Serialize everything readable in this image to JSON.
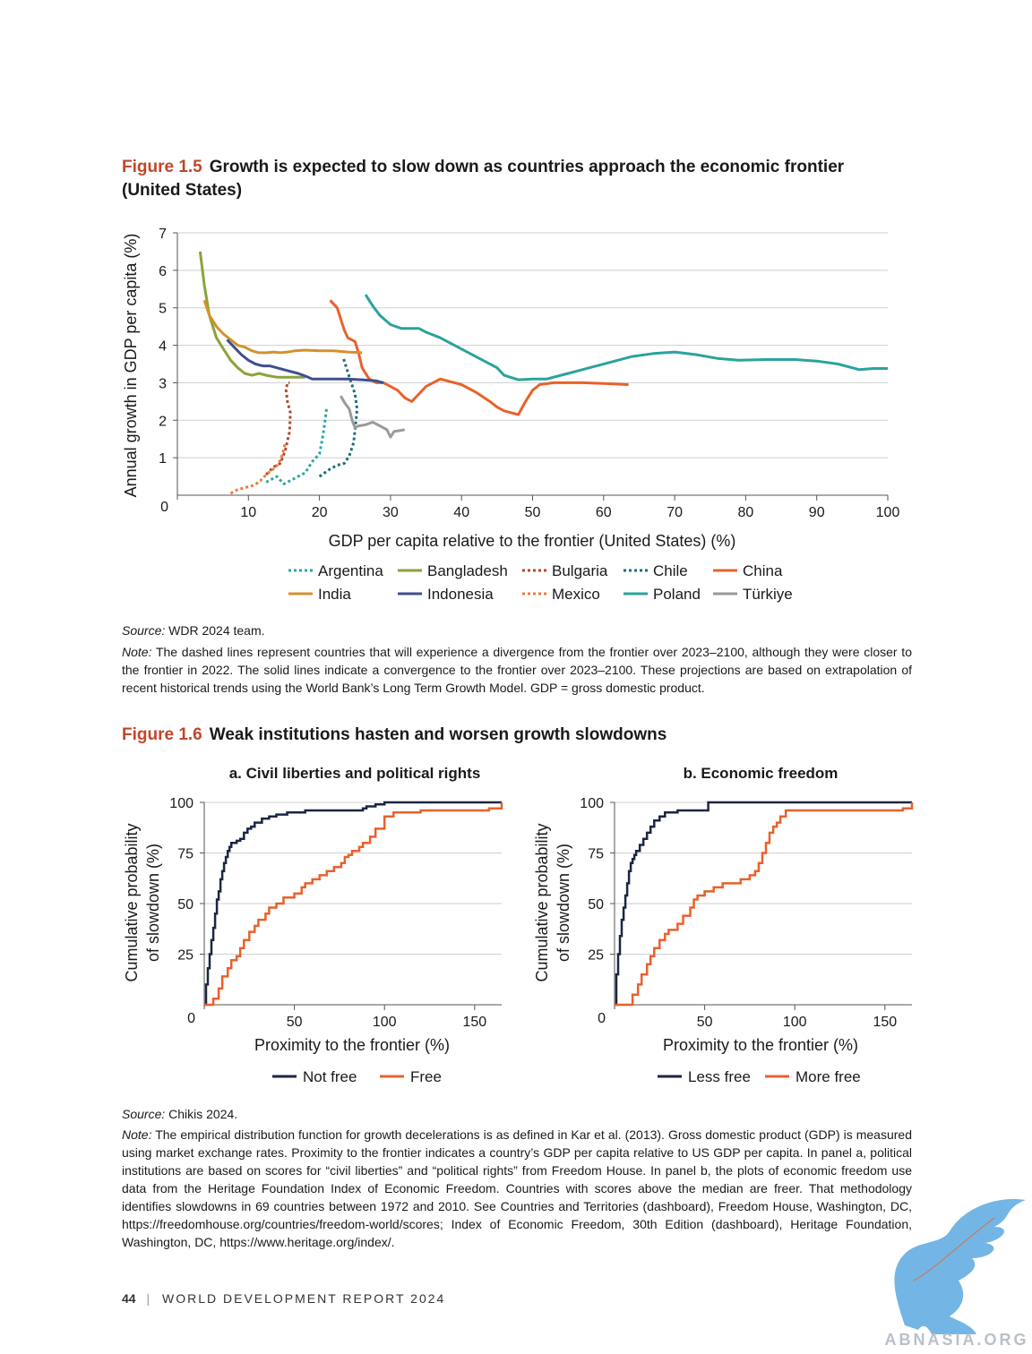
{
  "fig15": {
    "label": "Figure 1.5",
    "title_line1": "Growth is expected to slow down as countries approach the economic frontier",
    "title_line2": "(United States)",
    "source_label": "Source:",
    "source_text": " WDR 2024 team.",
    "note_label": "Note:",
    "note_text": " The dashed lines represent countries that will experience a divergence from the frontier over 2023–2100, although they were closer to the frontier in 2022. The solid lines indicate a convergence to the frontier over 2023–2100. These projections are based on extrapolation of recent historical trends using the World Bank’s Long Term Growth Model. GDP = gross domestic product."
  },
  "fig16": {
    "label": "Figure 1.6",
    "title": "Weak institutions hasten and worsen growth slowdowns",
    "source_label": "Source:",
    "source_text": " Chikis 2024.",
    "note_label": "Note:",
    "note_text": " The empirical distribution function for growth decelerations is as defined in Kar et al. (2013). Gross domestic product (GDP) is measured using market exchange rates. Proximity to the frontier indicates a country’s GDP per capita relative to US GDP per capita. In panel a, political institutions are based on scores for “civil liberties” and “political rights” from Freedom House. In panel b, the plots of economic freedom use data from the Heritage Foundation Index of Economic Freedom. Countries with scores above the median are freer. That methodology identifies slowdowns in 69 countries between 1972 and 2010. See Countries and Territories (dashboard), Freedom House, Washington, DC, https://freedomhouse.org/countries/freedom-world/scores; Index of Economic Freedom, 30th Edition (dashboard), Heritage Foundation, Washington, DC, https://www.heritage.org/index/."
  },
  "footer": {
    "page": "44",
    "separator": "|",
    "title": "WORLD DEVELOPMENT REPORT 2024"
  },
  "watermark": {
    "text": "ABNASIA.ORG"
  },
  "colors": {
    "argentina": "#2ba9a2",
    "bangladesh": "#8aa33a",
    "bulgaria": "#b04a2e",
    "chile": "#1f6e7a",
    "china": "#e8612c",
    "india": "#d4922c",
    "indonesia": "#3f4f8e",
    "mexico": "#f07a3a",
    "poland": "#2aa39c",
    "turkiye": "#9a9a9a",
    "notfree": "#1c2541",
    "free": "#e8612c"
  },
  "chart_data": [
    {
      "type": "line",
      "xlabel": "GDP per capita relative to the frontier (United States) (%)",
      "ylabel": "Annual growth in GDP per capita (%)",
      "xlim": [
        0,
        100
      ],
      "ylim": [
        0,
        7
      ],
      "xticks": [
        10,
        20,
        30,
        40,
        50,
        60,
        70,
        80,
        90,
        100
      ],
      "yticks": [
        1,
        2,
        3,
        4,
        5,
        6,
        7
      ],
      "origin_label": "0",
      "legend_position": "bottom",
      "series": [
        {
          "name": "Argentina",
          "style": "dashed",
          "color": "#2ba9a2",
          "x": [
            12.5,
            14,
            15,
            16.5,
            18,
            19,
            20,
            20.5,
            20.8,
            21
          ],
          "y": [
            0.35,
            0.5,
            0.3,
            0.45,
            0.6,
            0.9,
            1.1,
            1.6,
            2.0,
            2.3
          ]
        },
        {
          "name": "Bangladesh",
          "style": "solid",
          "color": "#8aa33a",
          "x": [
            3.2,
            3.8,
            4.5,
            5.5,
            6.5,
            7.5,
            8.5,
            9.5,
            10.5,
            11.5,
            12.5,
            14,
            16,
            18
          ],
          "y": [
            6.5,
            5.6,
            4.8,
            4.2,
            3.9,
            3.6,
            3.4,
            3.25,
            3.2,
            3.25,
            3.2,
            3.15,
            3.15,
            3.15
          ]
        },
        {
          "name": "Bulgaria",
          "style": "dashed",
          "color": "#b04a2e",
          "x": [
            12.5,
            13.5,
            14.5,
            15.2,
            15.8,
            15.9,
            15.5,
            15.3,
            15.5,
            15.8
          ],
          "y": [
            0.55,
            0.75,
            0.85,
            1.2,
            1.7,
            2.2,
            2.5,
            2.8,
            3.0,
            3.0
          ]
        },
        {
          "name": "Chile",
          "style": "dashed",
          "color": "#1f6e7a",
          "x": [
            20,
            21.5,
            22.5,
            23.5,
            24.2,
            24.8,
            25.1,
            25.3,
            25.0,
            24.3,
            23.8,
            23.3
          ],
          "y": [
            0.5,
            0.7,
            0.8,
            0.85,
            1.05,
            1.4,
            1.9,
            2.3,
            2.7,
            3.1,
            3.4,
            3.7
          ]
        },
        {
          "name": "China",
          "style": "solid",
          "color": "#e8612c",
          "x": [
            21.5,
            22.5,
            23,
            23.5,
            24,
            25,
            25.5,
            26,
            27,
            28,
            29,
            30,
            31,
            32,
            33,
            34,
            35,
            36,
            37,
            38,
            40,
            42,
            44,
            45,
            46,
            47,
            48,
            49,
            50,
            51,
            53,
            57,
            60,
            63.5
          ],
          "y": [
            5.2,
            5.0,
            4.7,
            4.4,
            4.2,
            4.1,
            3.8,
            3.4,
            3.1,
            3.0,
            3.0,
            2.9,
            2.8,
            2.6,
            2.5,
            2.7,
            2.9,
            3.0,
            3.1,
            3.05,
            2.95,
            2.75,
            2.5,
            2.35,
            2.25,
            2.2,
            2.15,
            2.5,
            2.8,
            2.95,
            3.0,
            3.0,
            2.98,
            2.95
          ]
        },
        {
          "name": "India",
          "style": "solid",
          "color": "#d4922c",
          "x": [
            3.8,
            4.5,
            5.5,
            6.5,
            7.5,
            8.5,
            9.5,
            10.5,
            11.5,
            12.5,
            13.5,
            14.5,
            15.5,
            16.5,
            18,
            20,
            22,
            24,
            26
          ],
          "y": [
            5.2,
            4.8,
            4.5,
            4.3,
            4.15,
            4.0,
            3.95,
            3.85,
            3.8,
            3.8,
            3.82,
            3.8,
            3.82,
            3.85,
            3.87,
            3.85,
            3.85,
            3.82,
            3.8
          ]
        },
        {
          "name": "Indonesia",
          "style": "solid",
          "color": "#3f4f8e",
          "x": [
            7,
            8,
            9,
            10,
            11,
            12,
            13,
            14,
            15,
            16,
            17,
            18,
            19,
            20,
            22,
            24,
            26,
            28,
            29
          ],
          "y": [
            4.15,
            3.95,
            3.75,
            3.6,
            3.5,
            3.45,
            3.45,
            3.4,
            3.35,
            3.3,
            3.25,
            3.18,
            3.1,
            3.1,
            3.1,
            3.1,
            3.08,
            3.05,
            3.0
          ]
        },
        {
          "name": "Mexico",
          "style": "dashed",
          "color": "#f07a3a",
          "x": [
            7.5,
            8.5,
            9.5,
            10.5,
            11.5,
            12.5,
            13.5,
            14.3,
            14.8,
            15.2
          ],
          "y": [
            0.05,
            0.15,
            0.2,
            0.25,
            0.35,
            0.55,
            0.7,
            0.85,
            1.1,
            1.4
          ]
        },
        {
          "name": "Poland",
          "style": "solid",
          "color": "#2aa39c",
          "x": [
            26.5,
            27.5,
            28.5,
            30,
            31.5,
            33,
            34,
            35,
            37,
            39,
            41,
            43,
            45,
            46,
            48,
            50,
            52,
            55,
            58,
            61,
            64,
            67,
            70,
            73,
            76,
            79,
            83,
            87,
            90,
            93,
            96,
            98,
            100
          ],
          "y": [
            5.35,
            5.05,
            4.8,
            4.55,
            4.45,
            4.45,
            4.45,
            4.35,
            4.2,
            4.0,
            3.8,
            3.6,
            3.4,
            3.2,
            3.08,
            3.1,
            3.1,
            3.25,
            3.4,
            3.55,
            3.7,
            3.78,
            3.82,
            3.75,
            3.65,
            3.6,
            3.62,
            3.62,
            3.58,
            3.5,
            3.35,
            3.38,
            3.38
          ]
        },
        {
          "name": "Türkiye",
          "style": "solid",
          "color": "#9a9a9a",
          "x": [
            23,
            23.6,
            24.2,
            24.6,
            25,
            25.5,
            26.5,
            27.5,
            28.5,
            29.5,
            30,
            30.5,
            31.2,
            32
          ],
          "y": [
            2.65,
            2.45,
            2.3,
            2.0,
            1.8,
            1.85,
            1.88,
            1.95,
            1.85,
            1.75,
            1.55,
            1.7,
            1.72,
            1.75
          ]
        }
      ]
    },
    {
      "type": "line",
      "title": "a. Civil liberties and political rights",
      "xlabel": "Proximity to the frontier (%)",
      "ylabel_line1": "Cumulative probability",
      "ylabel_line2": "of slowdown (%)",
      "xlim": [
        0,
        165
      ],
      "ylim": [
        0,
        100
      ],
      "xticks": [
        50,
        100,
        150
      ],
      "yticks": [
        25,
        50,
        75,
        100
      ],
      "origin_label": "0",
      "legend_position": "bottom",
      "series": [
        {
          "name": "Not free",
          "color": "#1c2541",
          "x": [
            0,
            1,
            2,
            3,
            4,
            5,
            6,
            7,
            8,
            9,
            10,
            11,
            12,
            13,
            14,
            15,
            16,
            18,
            20,
            22,
            24,
            26,
            28,
            32,
            36,
            40,
            46,
            56,
            70,
            82,
            88,
            90,
            95,
            100,
            125,
            158,
            165
          ],
          "y": [
            0,
            10,
            18,
            25,
            32,
            38,
            45,
            52,
            56,
            62,
            66,
            70,
            73,
            76,
            78,
            80,
            80,
            81,
            82,
            85,
            87,
            88,
            90,
            92,
            93,
            94,
            95,
            96,
            96,
            96,
            97,
            98,
            99,
            100,
            100,
            100,
            100
          ]
        },
        {
          "name": "Free",
          "color": "#e8612c",
          "x": [
            0,
            5,
            8,
            10,
            13,
            15,
            18,
            20,
            22,
            25,
            28,
            30,
            34,
            36,
            40,
            44,
            46,
            50,
            54,
            56,
            60,
            64,
            68,
            72,
            76,
            78,
            80,
            82,
            86,
            88,
            92,
            95,
            100,
            105,
            120,
            140,
            158,
            165
          ],
          "y": [
            0,
            3,
            8,
            14,
            18,
            22,
            24,
            28,
            32,
            36,
            39,
            42,
            45,
            48,
            50,
            53,
            53,
            55,
            58,
            60,
            62,
            64,
            66,
            68,
            70,
            73,
            74,
            76,
            78,
            80,
            83,
            87,
            93,
            95,
            96,
            96,
            97,
            100
          ]
        }
      ]
    },
    {
      "type": "line",
      "title": "b. Economic freedom",
      "xlabel": "Proximity to the frontier (%)",
      "ylabel_line1": "Cumulative probability",
      "ylabel_line2": "of slowdown (%)",
      "xlim": [
        0,
        165
      ],
      "ylim": [
        0,
        100
      ],
      "xticks": [
        50,
        100,
        150
      ],
      "yticks": [
        25,
        50,
        75,
        100
      ],
      "origin_label": "0",
      "legend_position": "bottom",
      "series": [
        {
          "name": "Less free",
          "color": "#1c2541",
          "x": [
            0,
            1,
            2,
            3,
            4,
            5,
            6,
            7,
            8,
            9,
            10,
            11,
            12,
            14,
            16,
            18,
            20,
            22,
            25,
            28,
            35,
            42,
            52,
            80,
            120,
            160,
            165
          ],
          "y": [
            0,
            15,
            25,
            34,
            42,
            48,
            54,
            60,
            66,
            70,
            72,
            74,
            76,
            79,
            82,
            85,
            88,
            91,
            93,
            95,
            96,
            96,
            100,
            100,
            100,
            100,
            100
          ]
        },
        {
          "name": "More free",
          "color": "#e8612c",
          "x": [
            0,
            10,
            13,
            15,
            18,
            20,
            22,
            25,
            28,
            30,
            35,
            38,
            42,
            44,
            46,
            50,
            55,
            60,
            70,
            75,
            78,
            80,
            82,
            84,
            86,
            88,
            90,
            92,
            95,
            100,
            120,
            160,
            165
          ],
          "y": [
            0,
            5,
            10,
            15,
            20,
            24,
            28,
            32,
            35,
            37,
            40,
            44,
            48,
            52,
            54,
            56,
            58,
            60,
            62,
            64,
            66,
            70,
            75,
            80,
            85,
            88,
            90,
            93,
            96,
            96,
            96,
            97,
            100
          ]
        }
      ]
    }
  ]
}
